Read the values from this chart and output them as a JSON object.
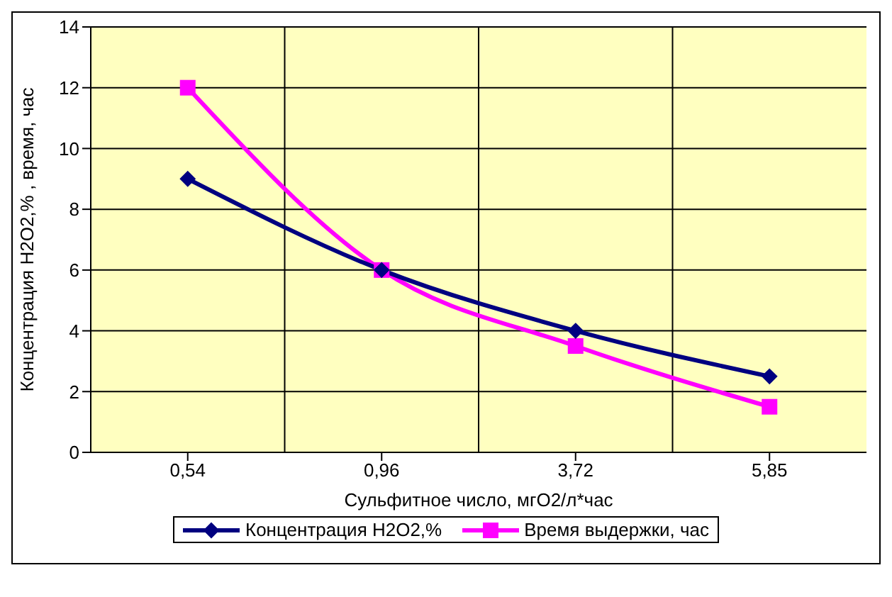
{
  "chart_data": {
    "type": "line",
    "xlabel": "Сульфитное число, мгО2/л*час",
    "ylabel": "Концентрация Н2О2,% , время, час",
    "categories": [
      "0,54",
      "0,96",
      "3,72",
      "5,85"
    ],
    "ylim": [
      0,
      14
    ],
    "yticks": [
      0,
      2,
      4,
      6,
      8,
      10,
      12,
      14
    ],
    "grid": true,
    "legend": "bottom",
    "line_style": "solid",
    "series": [
      {
        "name": "Концентрация Н2О2,%",
        "color": "#000080",
        "marker": "diamond",
        "values": [
          9,
          6,
          4,
          2.5
        ]
      },
      {
        "name": "Время выдержки, час",
        "color": "#ff00ff",
        "marker": "square",
        "values": [
          12,
          6,
          3.5,
          1.5
        ]
      }
    ]
  }
}
